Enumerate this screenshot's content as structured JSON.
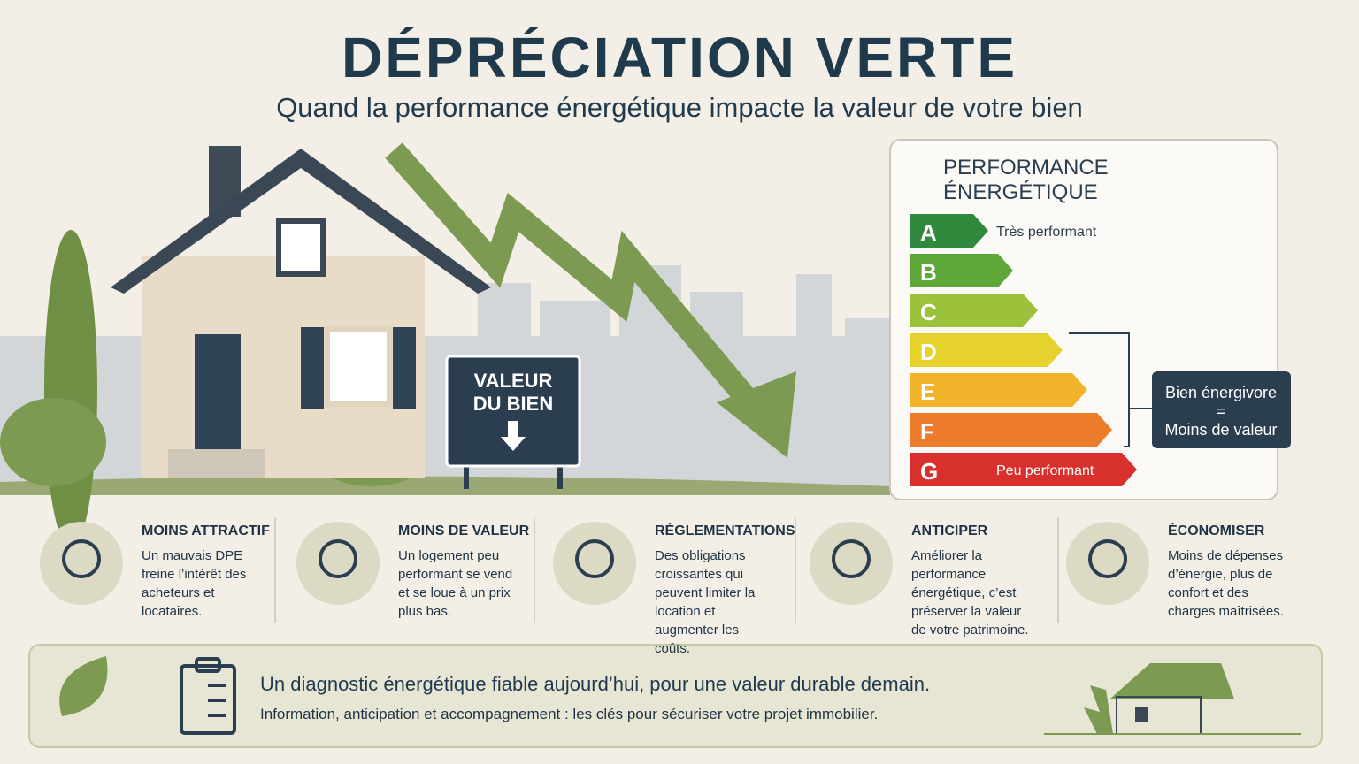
{
  "header": {
    "title": "DÉPRÉCIATION VERTE",
    "subtitle": "Quand la performance énergétique impacte la valeur de votre bien"
  },
  "sign": {
    "line1": "VALEUR",
    "line2": "DU BIEN"
  },
  "energy_panel": {
    "title_line1": "PERFORMANCE",
    "title_line2": "ÉNERGÉTIQUE",
    "classes": [
      {
        "letter": "A",
        "label": "Très performant",
        "color": "#2f8a3e"
      },
      {
        "letter": "B",
        "color": "#5ea83a"
      },
      {
        "letter": "C",
        "color": "#9cc23c"
      },
      {
        "letter": "D",
        "color": "#e6d22c"
      },
      {
        "letter": "E",
        "color": "#f0b32a"
      },
      {
        "letter": "F",
        "color": "#ec7b2c"
      },
      {
        "letter": "G",
        "label": "Peu performant",
        "color": "#d8312d"
      }
    ],
    "callout": {
      "line1": "Bien énergivore",
      "line2": "=",
      "line3": "Moins de valeur"
    }
  },
  "features": [
    {
      "title": "MOINS ATTRACTIF",
      "text": "Un mauvais DPE freine l’intérêt des acheteurs et locataires."
    },
    {
      "title": "MOINS DE VALEUR",
      "text": "Un logement peu performant se vend et se loue à un prix plus bas."
    },
    {
      "title": "RÉGLEMENTATIONS",
      "text": "Des obligations croissantes qui peuvent limiter la location et augmenter les coûts."
    },
    {
      "title": "ANTICIPER",
      "text": "Améliorer la performance énergétique, c’est préserver la valeur de votre patrimoine."
    },
    {
      "title": "ÉCONOMISER",
      "text": "Moins de dépenses d’énergie, plus de confort et des charges maîtrisées."
    }
  ],
  "footer": {
    "headline": "Un diagnostic énergétique fiable aujourd’hui, pour une valeur durable demain.",
    "text": "Information, anticipation et accompagnement : les clés pour sécuriser votre projet immobilier."
  }
}
